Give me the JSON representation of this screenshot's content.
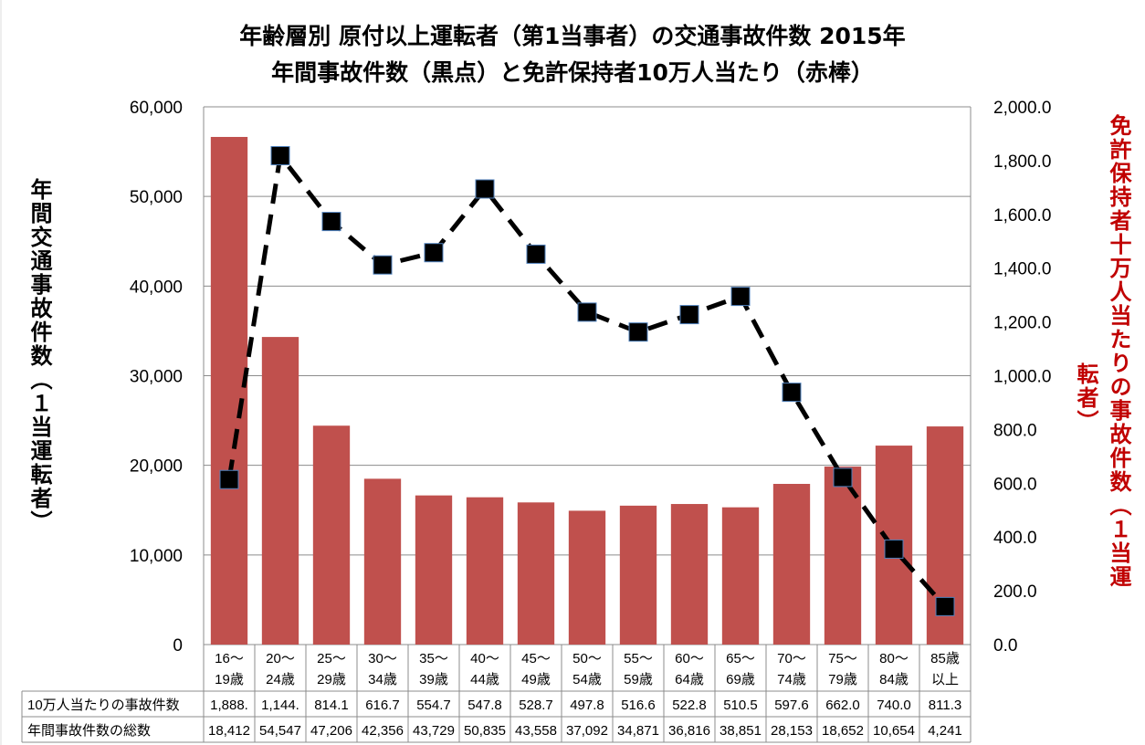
{
  "chart_data": {
    "type": "bar",
    "title": "年齢層別  原付以上運転者（第1当事者）の交通事故件数  2015年",
    "subtitle": "年間事故件数（黒点）と免許保持者10万人当たり（赤棒）",
    "ylabel_left": "年間交通事故件数（１当運転者）",
    "ylabel_right": "免許保持者十万人当たりの事故件数（１当運",
    "ylabel_right_wrap": "転者）",
    "ylim_left": [
      0,
      60000
    ],
    "ylim_right": [
      0,
      2000
    ],
    "yticks_left": [
      "0",
      "10,000",
      "20,000",
      "30,000",
      "40,000",
      "50,000",
      "60,000"
    ],
    "yticks_right": [
      "0.0",
      "200.0",
      "400.0",
      "600.0",
      "800.0",
      "1,000.0",
      "1,200.0",
      "1,400.0",
      "1,600.0",
      "1,800.0",
      "2,000.0"
    ],
    "grid": true,
    "categories": [
      [
        "16～",
        "19歳"
      ],
      [
        "20～",
        "24歳"
      ],
      [
        "25～",
        "29歳"
      ],
      [
        "30～",
        "34歳"
      ],
      [
        "35～",
        "39歳"
      ],
      [
        "40～",
        "44歳"
      ],
      [
        "45～",
        "49歳"
      ],
      [
        "50～",
        "54歳"
      ],
      [
        "55～",
        "59歳"
      ],
      [
        "60～",
        "64歳"
      ],
      [
        "65～",
        "69歳"
      ],
      [
        "70～",
        "74歳"
      ],
      [
        "75～",
        "79歳"
      ],
      [
        "80～",
        "84歳"
      ],
      [
        "85歳",
        "以上"
      ]
    ],
    "series": [
      {
        "name": "10万人当たりの事故件数",
        "axis": "right",
        "kind": "bar",
        "color": "#c0504d",
        "values": [
          1888.0,
          1144.0,
          814.1,
          616.7,
          554.7,
          547.8,
          528.7,
          497.8,
          516.6,
          522.8,
          510.5,
          597.6,
          662.0,
          740.0,
          811.3
        ],
        "labels": [
          "1,888.",
          "1,144.",
          "814.1",
          "616.7",
          "554.7",
          "547.8",
          "528.7",
          "497.8",
          "516.6",
          "522.8",
          "510.5",
          "597.6",
          "662.0",
          "740.0",
          "811.3"
        ]
      },
      {
        "name": "年間事故件数の総数",
        "axis": "left",
        "kind": "line",
        "color": "#000000",
        "values": [
          18412,
          54547,
          47206,
          42356,
          43729,
          50835,
          43558,
          37092,
          34871,
          36816,
          38851,
          28153,
          18652,
          10654,
          4241
        ],
        "labels": [
          "18,412",
          "54,547",
          "47,206",
          "42,356",
          "43,729",
          "50,835",
          "43,558",
          "37,092",
          "34,871",
          "36,816",
          "38,851",
          "28,153",
          "18,652",
          "10,654",
          "4,241"
        ]
      }
    ],
    "right_label_color": "#c00000"
  }
}
